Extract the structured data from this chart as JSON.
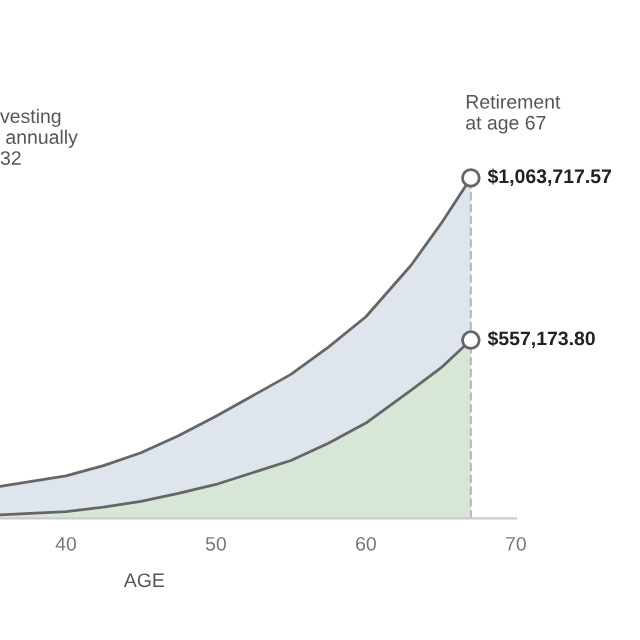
{
  "chart_data": {
    "type": "area",
    "ylim": [
      0,
      1063717.57
    ],
    "xlabel": "AGE",
    "annotations": [
      "vesting\n annually\n32"
    ],
    "x": [
      35.6,
      40,
      42.5,
      45,
      47.5,
      50,
      55,
      57.5,
      60,
      63,
      65,
      67
    ],
    "series": [
      {
        "color": "#dfe5ec",
        "values": [
          100000,
          133000,
          165000,
          205000,
          258000,
          319000,
          450000,
          535000,
          630000,
          790000,
          920000,
          1063717.57
        ],
        "value_labels": [
          null,
          null,
          null,
          null,
          null,
          null,
          null,
          null,
          null,
          null,
          null,
          "$1,063,717.57"
        ]
      },
      {
        "color": "#d8e6d8",
        "values": [
          11000,
          21000,
          35000,
          53000,
          78000,
          106000,
          181000,
          235000,
          298000,
          400000,
          470000,
          557173.8
        ],
        "value_labels": [
          null,
          null,
          null,
          null,
          null,
          null,
          null,
          null,
          null,
          null,
          null,
          "$557,173.80"
        ]
      }
    ],
    "xlim": [
      35.6,
      70
    ],
    "xticks": [
      40,
      50,
      60,
      70
    ],
    "ref_lines": [
      {
        "axis": "x",
        "value": 67,
        "label": "Retirement\nat age 67",
        "color": "#bbbbbb",
        "line_style": "dashed"
      }
    ],
    "grid": false,
    "legend": false
  }
}
